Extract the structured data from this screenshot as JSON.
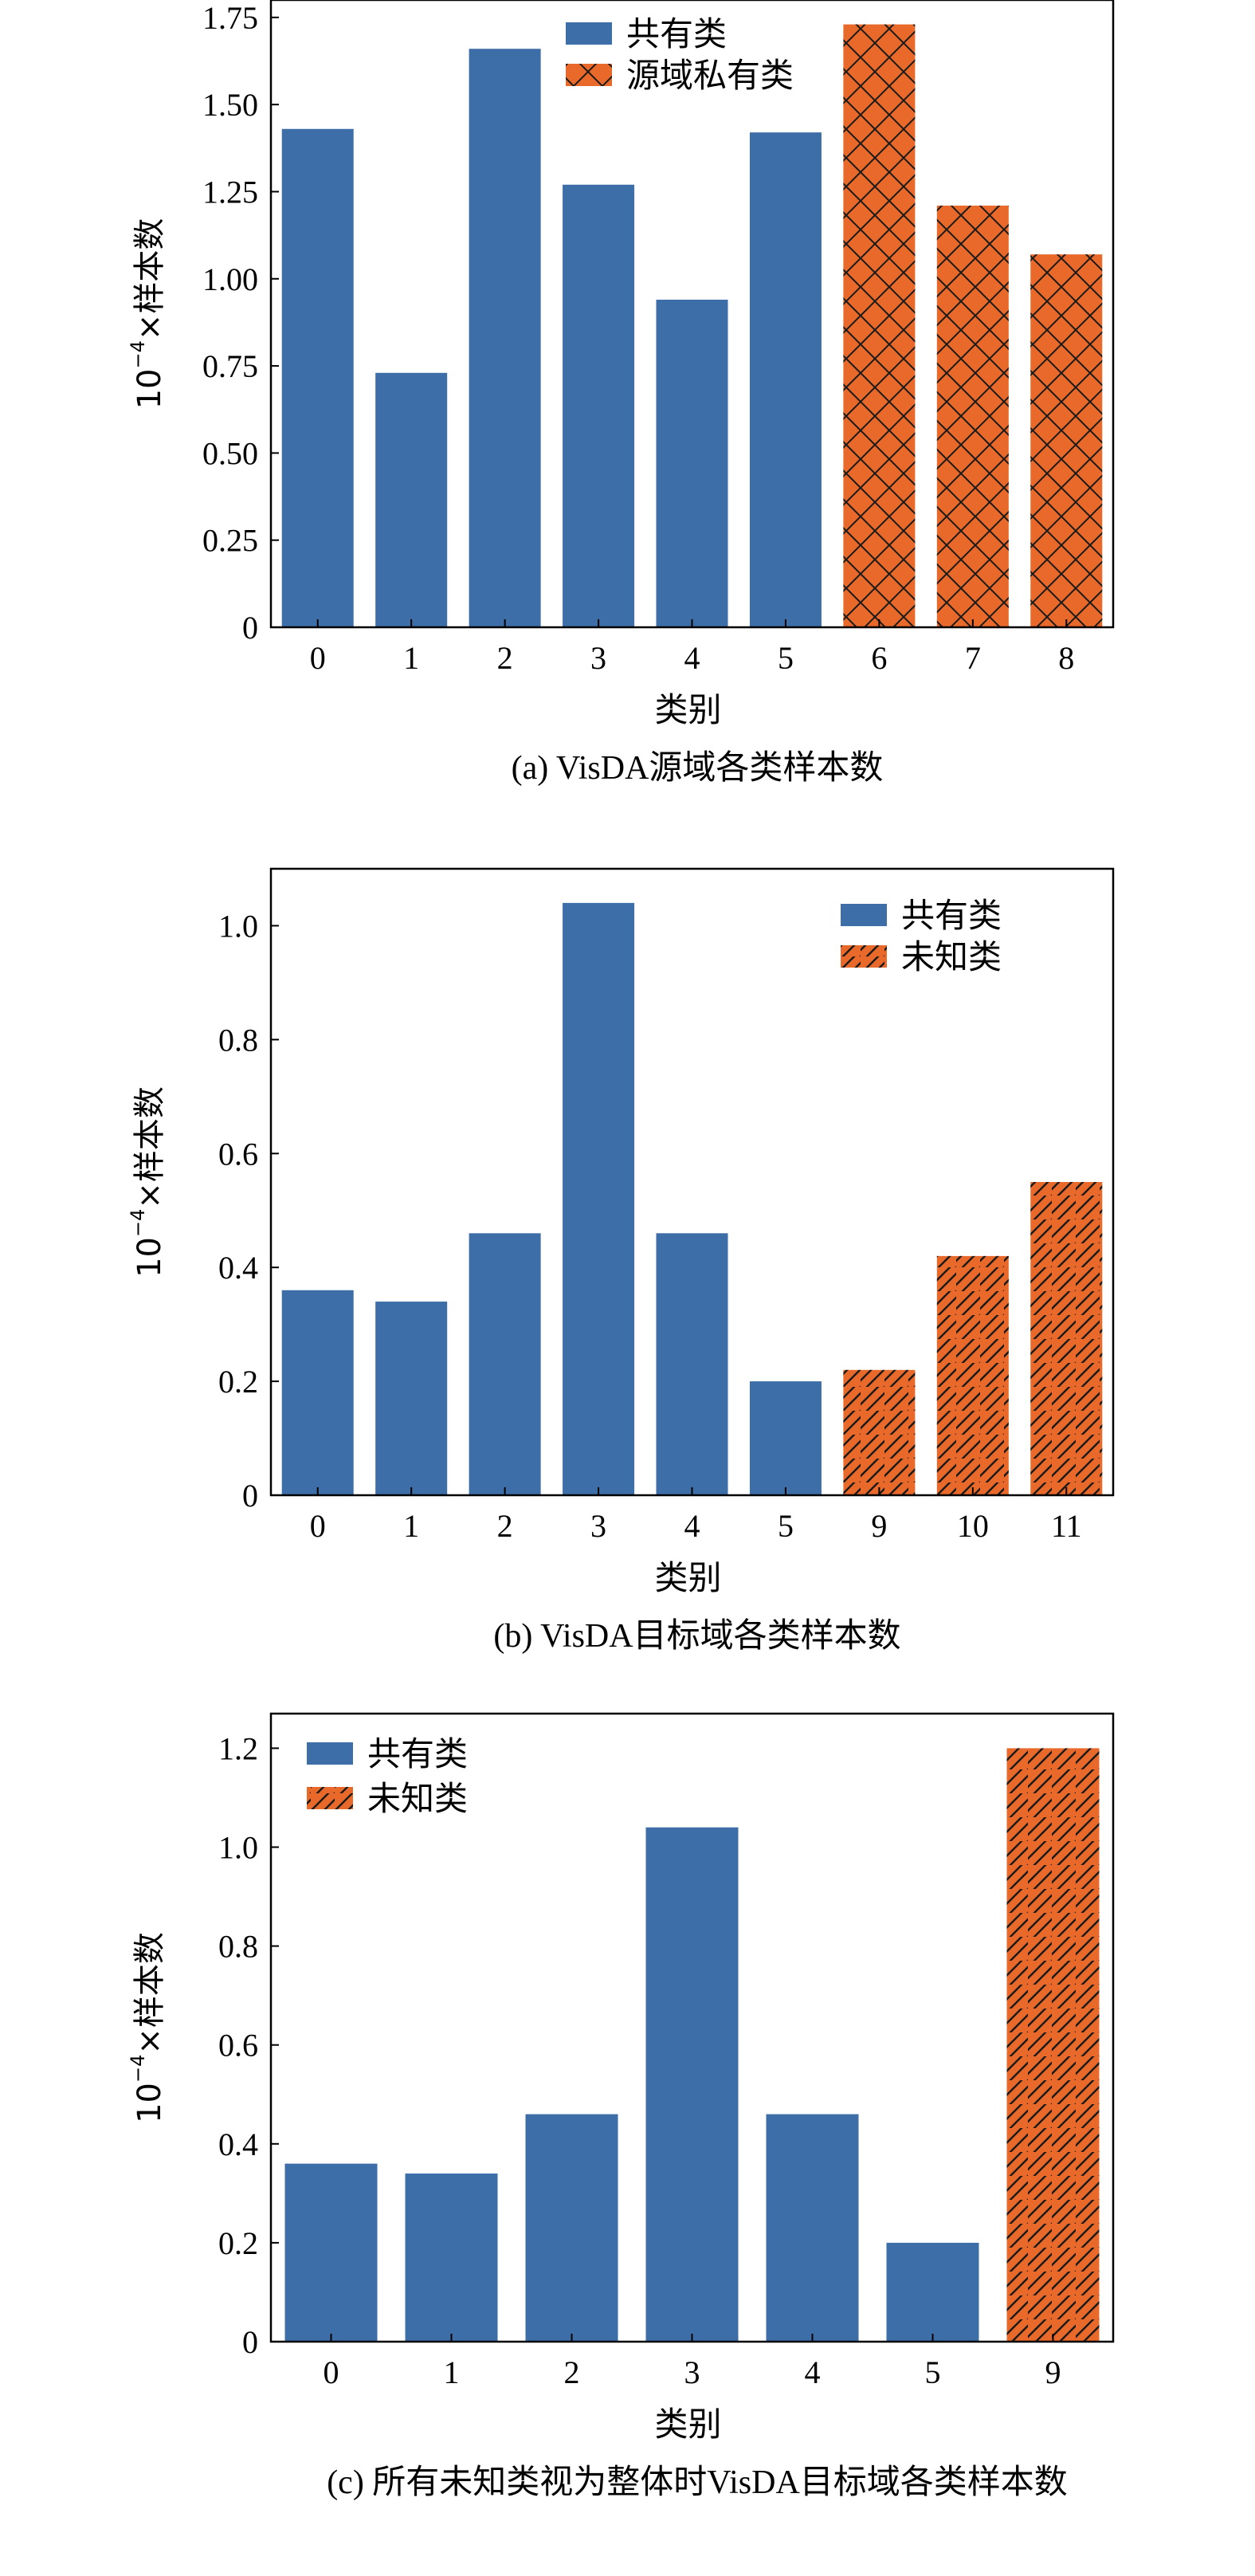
{
  "chart_data": [
    {
      "type": "bar",
      "ylabel_prefix": "10",
      "ylabel_exp": "−4",
      "ylabel_suffix": "×样本数",
      "xlabel": "类别",
      "caption": "(a)  VisDA源域各类样本数",
      "ylim": [
        0,
        1.8
      ],
      "yticks": [
        "0",
        "0.25",
        "0.50",
        "0.75",
        "1.00",
        "1.25",
        "1.50",
        "1.75"
      ],
      "ytick_values": [
        0,
        0.25,
        0.5,
        0.75,
        1.0,
        1.25,
        1.5,
        1.75
      ],
      "categories": [
        "0",
        "1",
        "2",
        "3",
        "4",
        "5",
        "6",
        "7",
        "8"
      ],
      "values": [
        1.43,
        0.73,
        1.66,
        1.27,
        0.94,
        1.42,
        1.73,
        1.21,
        1.07
      ],
      "groups": [
        "shared",
        "shared",
        "shared",
        "shared",
        "shared",
        "shared",
        "other",
        "other",
        "other"
      ],
      "hatch": "cross",
      "legend": {
        "placement": "top-center",
        "entries": [
          "共有类",
          "源域私有类"
        ]
      },
      "colors": {
        "shared": "#3d6ea8",
        "other": "#e8692a"
      }
    },
    {
      "type": "bar",
      "ylabel_prefix": "10",
      "ylabel_exp": "−4",
      "ylabel_suffix": "×样本数",
      "xlabel": "类别",
      "caption": "(b)  VisDA目标域各类样本数",
      "ylim": [
        0,
        1.1
      ],
      "yticks": [
        "0",
        "0.2",
        "0.4",
        "0.6",
        "0.8",
        "1.0"
      ],
      "ytick_values": [
        0,
        0.2,
        0.4,
        0.6,
        0.8,
        1.0
      ],
      "categories": [
        "0",
        "1",
        "2",
        "3",
        "4",
        "5",
        "9",
        "10",
        "11"
      ],
      "values": [
        0.36,
        0.34,
        0.46,
        1.04,
        0.46,
        0.2,
        0.22,
        0.42,
        0.55
      ],
      "groups": [
        "shared",
        "shared",
        "shared",
        "shared",
        "shared",
        "shared",
        "other",
        "other",
        "other"
      ],
      "hatch": "diagonal",
      "legend": {
        "placement": "top-right",
        "entries": [
          "共有类",
          "未知类"
        ]
      },
      "colors": {
        "shared": "#3d6ea8",
        "other": "#e8692a"
      }
    },
    {
      "type": "bar",
      "ylabel_prefix": "10",
      "ylabel_exp": "−4",
      "ylabel_suffix": "×样本数",
      "xlabel": "类别",
      "caption": "(c)  所有未知类视为整体时VisDA目标域各类样本数",
      "ylim": [
        0,
        1.27
      ],
      "yticks": [
        "0",
        "0.2",
        "0.4",
        "0.6",
        "0.8",
        "1.0",
        "1.2"
      ],
      "ytick_values": [
        0,
        0.2,
        0.4,
        0.6,
        0.8,
        1.0,
        1.2
      ],
      "categories": [
        "0",
        "1",
        "2",
        "3",
        "4",
        "5",
        "9"
      ],
      "values": [
        0.36,
        0.34,
        0.46,
        1.04,
        0.46,
        0.2,
        1.2
      ],
      "groups": [
        "shared",
        "shared",
        "shared",
        "shared",
        "shared",
        "shared",
        "other"
      ],
      "hatch": "diagonal",
      "legend": {
        "placement": "top-left",
        "entries": [
          "共有类",
          "未知类"
        ]
      },
      "colors": {
        "shared": "#3d6ea8",
        "other": "#e8692a"
      }
    }
  ]
}
